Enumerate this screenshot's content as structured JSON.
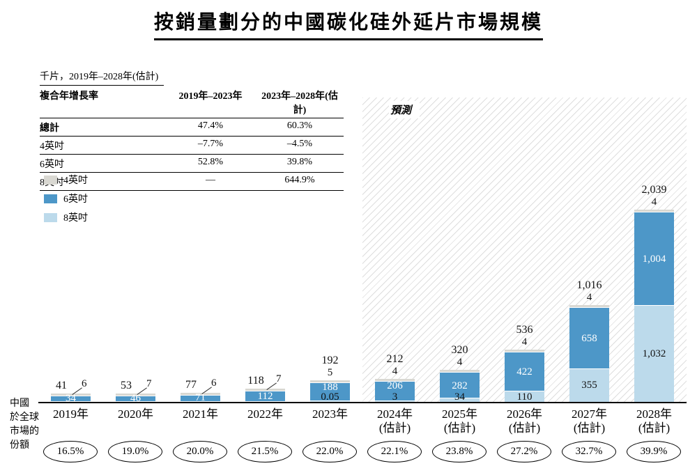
{
  "title": "按銷量劃分的中國碳化硅外延片市場規模",
  "unit_label": "千片，2019年–2028年(估計)",
  "cagr_table": {
    "headers": [
      "複合年增長率",
      "2019年–2023年",
      "2023年–2028年(估計)"
    ],
    "rows": [
      [
        "總計",
        "47.4%",
        "60.3%"
      ],
      [
        "4英吋",
        "–7.7%",
        "–4.5%"
      ],
      [
        "6英吋",
        "52.8%",
        "39.8%"
      ],
      [
        "8英吋",
        "—",
        "644.9%"
      ]
    ]
  },
  "legend": [
    {
      "label": "4英吋",
      "color": "#d9d8d2"
    },
    {
      "label": "6英吋",
      "color": "#4d97c8"
    },
    {
      "label": "8英吋",
      "color": "#bcdaeb"
    }
  ],
  "share_axis_label": "中國\n於全球\n市場的\n份額",
  "chart_data": {
    "type": "bar",
    "stacked": true,
    "title": "按銷量劃分的中國碳化硅外延片市場規模",
    "unit": "千片",
    "categories": [
      "2019年",
      "2020年",
      "2021年",
      "2022年",
      "2023年",
      "2024年\n(估計)",
      "2025年\n(估計)",
      "2026年\n(估計)",
      "2027年\n(估計)",
      "2028年\n(估計)"
    ],
    "series": [
      {
        "name": "8英吋",
        "color": "#bcdaeb",
        "values": [
          0,
          0,
          0,
          0,
          0.05,
          3,
          34,
          110,
          355,
          1032
        ],
        "labels": [
          "",
          "",
          "",
          "",
          "0.05",
          "3",
          "34",
          "110",
          "355",
          "1,032"
        ]
      },
      {
        "name": "6英吋",
        "color": "#4d97c8",
        "values": [
          34,
          46,
          71,
          112,
          188,
          206,
          282,
          422,
          658,
          1004
        ],
        "labels": [
          "34",
          "46",
          "71",
          "112",
          "188",
          "206",
          "282",
          "422",
          "658",
          "1,004"
        ]
      },
      {
        "name": "4英吋",
        "color": "#d9d8d2",
        "values": [
          6,
          7,
          6,
          7,
          5,
          4,
          4,
          4,
          4,
          4
        ],
        "labels": [
          "6",
          "7",
          "6",
          "7",
          "5",
          "4",
          "4",
          "4",
          "4",
          "4"
        ]
      }
    ],
    "totals": [
      41,
      53,
      77,
      118,
      192,
      212,
      320,
      536,
      1016,
      2039
    ],
    "total_labels": [
      "41",
      "53",
      "77",
      "118",
      "192",
      "212",
      "320",
      "536",
      "1,016",
      "2,039"
    ],
    "leader_label_indices": [
      0,
      1,
      2,
      3
    ],
    "forecast_start_index": 5,
    "forecast_label": "預測",
    "share_values": [
      "16.5%",
      "19.0%",
      "20.0%",
      "21.5%",
      "22.0%",
      "22.1%",
      "23.8%",
      "27.2%",
      "32.7%",
      "39.9%"
    ],
    "ylim": [
      0,
      2100
    ],
    "grid": false,
    "legend_position": "left"
  }
}
